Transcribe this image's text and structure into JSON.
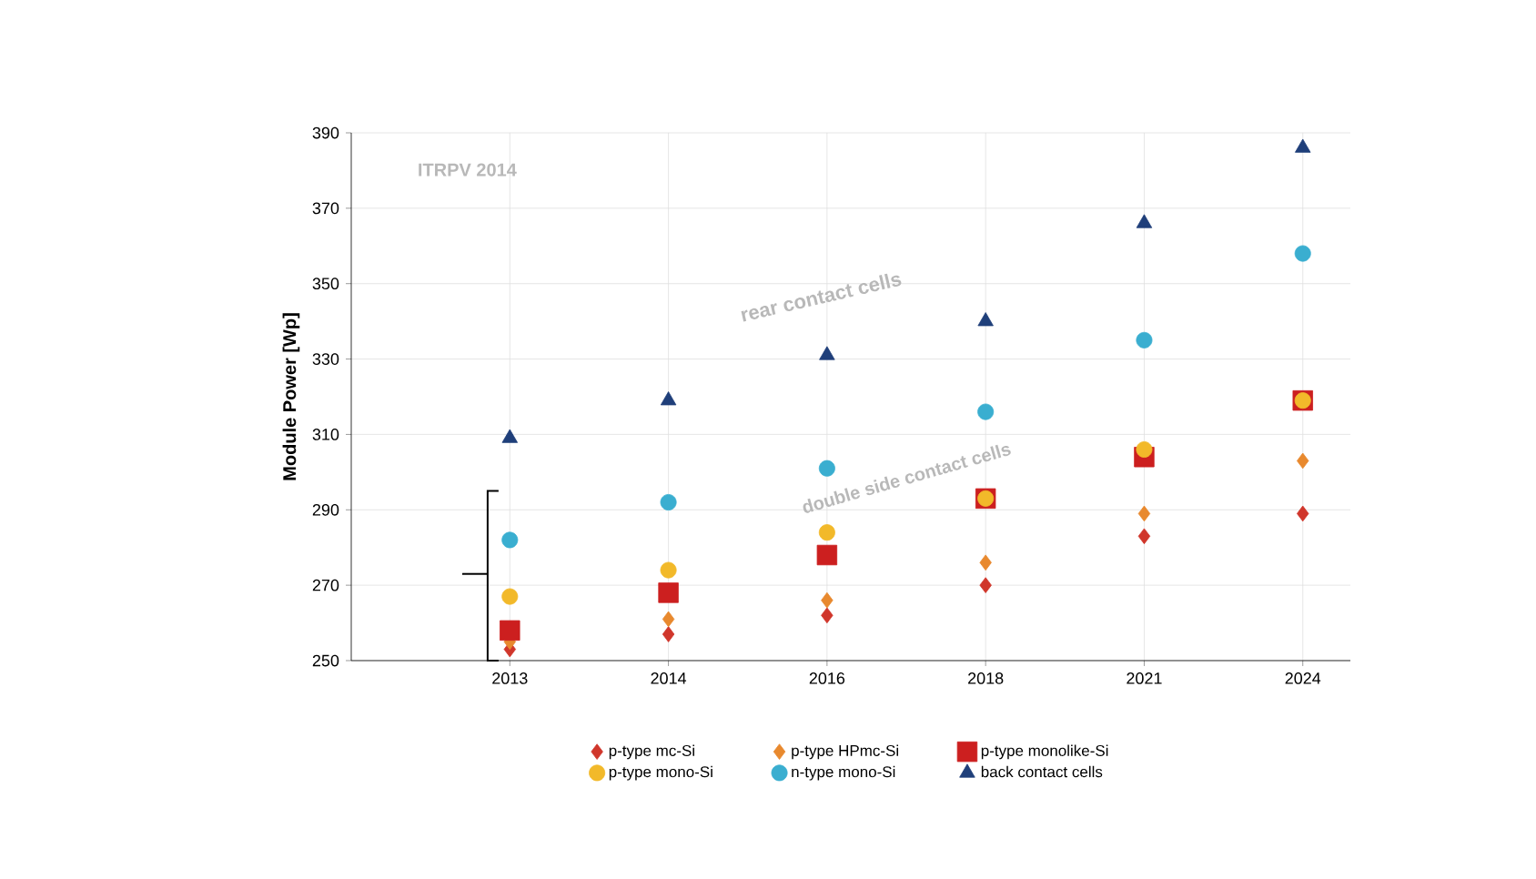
{
  "chart_data": {
    "type": "scatter",
    "ylabel": "Module Power [Wp]",
    "categories": [
      "2013",
      "2014",
      "2016",
      "2018",
      "2021",
      "2024"
    ],
    "series": [
      {
        "name": "p-type mc-Si",
        "color": "#d0362b",
        "marker": "diamond",
        "values": [
          253,
          257,
          262,
          270,
          283,
          289
        ]
      },
      {
        "name": "p-type HPmc-Si",
        "color": "#e8892e",
        "marker": "diamond",
        "values": [
          255,
          261,
          266,
          276,
          289,
          303
        ]
      },
      {
        "name": "p-type monolike-Si",
        "color": "#cc1f1f",
        "marker": "square",
        "values": [
          258,
          268,
          278,
          293,
          304,
          319
        ]
      },
      {
        "name": "p-type mono-Si",
        "color": "#f2b92a",
        "marker": "circle",
        "values": [
          267,
          274,
          284,
          293,
          306,
          319
        ]
      },
      {
        "name": "n-type mono-Si",
        "color": "#3aaed0",
        "marker": "circle",
        "values": [
          282,
          292,
          301,
          316,
          335,
          358
        ]
      },
      {
        "name": "back contact cells",
        "color": "#1f3f7a",
        "marker": "triangle",
        "values": [
          309,
          319,
          331,
          340,
          366,
          386
        ]
      }
    ],
    "ylim": [
      250,
      390
    ],
    "yticks": [
      250,
      270,
      290,
      310,
      330,
      350,
      370,
      390
    ],
    "grid": true,
    "legend": "bottom",
    "annotations": [
      "ITRPV 2014",
      "rear contact cells",
      "double side contact cells"
    ]
  }
}
